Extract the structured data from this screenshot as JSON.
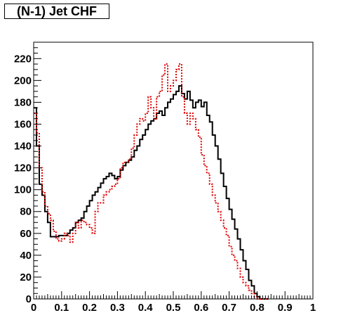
{
  "chart_data": {
    "type": "line",
    "title": "(N-1) Jet CHF",
    "xlabel": "",
    "ylabel": "",
    "xlim": [
      0,
      1
    ],
    "ylim": [
      0,
      235
    ],
    "grid": false,
    "x_ticks": [
      "0",
      "0.1",
      "0.2",
      "0.3",
      "0.4",
      "0.5",
      "0.6",
      "0.7",
      "0.8",
      "0.9",
      "1"
    ],
    "y_ticks": [
      "0",
      "20",
      "40",
      "60",
      "80",
      "100",
      "120",
      "140",
      "160",
      "180",
      "200",
      "220"
    ],
    "bin_width": 0.01,
    "series": [
      {
        "color": "#000000",
        "style": "solid",
        "values": [
          175,
          140,
          105,
          95,
          80,
          70,
          57,
          57,
          57,
          58,
          58,
          58,
          60,
          63,
          65,
          70,
          72,
          74,
          80,
          85,
          90,
          95,
          98,
          102,
          106,
          110,
          112,
          115,
          113,
          110,
          112,
          118,
          122,
          125,
          127,
          130,
          136,
          140,
          146,
          150,
          155,
          160,
          163,
          165,
          170,
          172,
          168,
          175,
          180,
          183,
          187,
          190,
          195,
          188,
          183,
          190,
          182,
          175,
          180,
          182,
          176,
          180,
          168,
          162,
          150,
          140,
          128,
          115,
          103,
          92,
          82,
          73,
          64,
          55,
          45,
          35,
          27,
          17,
          12,
          5,
          2,
          0,
          0,
          0
        ]
      },
      {
        "color": "#dd0000",
        "style": "dotted",
        "values": [
          170,
          152,
          120,
          98,
          85,
          78,
          72,
          62,
          55,
          53,
          55,
          60,
          58,
          52,
          60,
          70,
          65,
          72,
          70,
          68,
          65,
          60,
          80,
          88,
          88,
          95,
          98,
          100,
          103,
          105,
          110,
          120,
          125,
          125,
          128,
          138,
          150,
          160,
          165,
          163,
          170,
          185,
          175,
          165,
          185,
          190,
          205,
          215,
          190,
          195,
          200,
          210,
          215,
          185,
          170,
          160,
          170,
          165,
          155,
          148,
          132,
          122,
          115,
          105,
          95,
          88,
          80,
          72,
          65,
          58,
          48,
          40,
          35,
          28,
          20,
          15,
          12,
          8,
          5,
          2,
          0,
          0,
          0,
          0
        ]
      }
    ]
  }
}
